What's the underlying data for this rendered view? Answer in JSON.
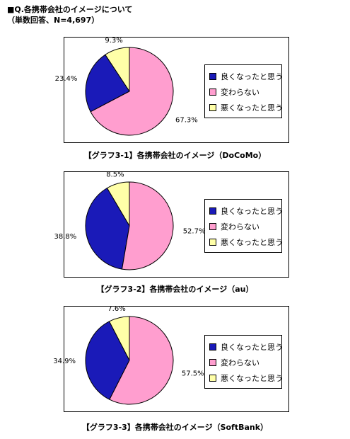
{
  "header": {
    "title": "■Q.各携帯会社のイメージについて",
    "subtitle": "（単数回答、N=4,697）"
  },
  "colors": {
    "good": "#1a1ab8",
    "same": "#ff9ecf",
    "bad": "#ffffa8"
  },
  "chart_data": [
    {
      "type": "pie",
      "title": "【グラフ3-1】各携帯会社のイメージ（DoCoMo）",
      "categories": [
        "良くなったと思う",
        "変わらない",
        "悪くなったと思う"
      ],
      "values": [
        23.4,
        67.3,
        9.3
      ],
      "value_labels": [
        "23.4%",
        "67.3%",
        "9.3%"
      ],
      "colors": [
        "#1a1ab8",
        "#ff9ecf",
        "#ffffa8"
      ],
      "legend": "right"
    },
    {
      "type": "pie",
      "title": "【グラフ3-2】各携帯会社のイメージ（au）",
      "categories": [
        "良くなったと思う",
        "変わらない",
        "悪くなったと思う"
      ],
      "values": [
        38.8,
        52.7,
        8.5
      ],
      "value_labels": [
        "38.8%",
        "52.7%",
        "8.5%"
      ],
      "colors": [
        "#1a1ab8",
        "#ff9ecf",
        "#ffffa8"
      ],
      "legend": "right"
    },
    {
      "type": "pie",
      "title": "【グラフ3-3】各携帯会社のイメージ（SoftBank）",
      "categories": [
        "良くなったと思う",
        "変わらない",
        "悪くなったと思う"
      ],
      "values": [
        34.9,
        57.5,
        7.6
      ],
      "value_labels": [
        "34.9%",
        "57.5%",
        "7.6%"
      ],
      "colors": [
        "#1a1ab8",
        "#ff9ecf",
        "#ffffa8"
      ],
      "legend": "right"
    }
  ]
}
